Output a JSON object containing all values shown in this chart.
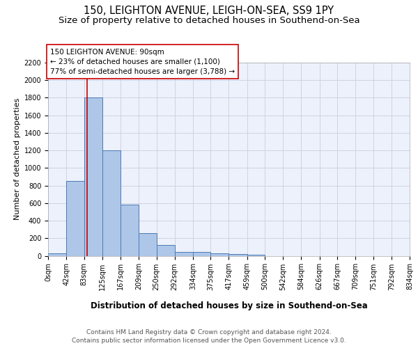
{
  "title1": "150, LEIGHTON AVENUE, LEIGH-ON-SEA, SS9 1PY",
  "title2": "Size of property relative to detached houses in Southend-on-Sea",
  "xlabel": "Distribution of detached houses by size in Southend-on-Sea",
  "ylabel": "Number of detached properties",
  "bin_labels": [
    "0sqm",
    "42sqm",
    "83sqm",
    "125sqm",
    "167sqm",
    "209sqm",
    "250sqm",
    "292sqm",
    "334sqm",
    "375sqm",
    "417sqm",
    "459sqm",
    "500sqm",
    "542sqm",
    "584sqm",
    "626sqm",
    "667sqm",
    "709sqm",
    "751sqm",
    "792sqm",
    "834sqm"
  ],
  "bin_edges": [
    0,
    42,
    83,
    125,
    167,
    209,
    250,
    292,
    334,
    375,
    417,
    459,
    500,
    542,
    584,
    626,
    667,
    709,
    751,
    792,
    834
  ],
  "bar_heights": [
    25,
    850,
    1800,
    1200,
    580,
    255,
    120,
    45,
    40,
    30,
    20,
    15,
    0,
    0,
    0,
    0,
    0,
    0,
    0,
    0
  ],
  "bar_color": "#aec6e8",
  "bar_edge_color": "#4a7ab5",
  "grid_color": "#c8cfe0",
  "background_color": "#edf1fb",
  "property_size": 90,
  "red_line_color": "#cc0000",
  "annotation_text": "150 LEIGHTON AVENUE: 90sqm\n← 23% of detached houses are smaller (1,100)\n77% of semi-detached houses are larger (3,788) →",
  "annotation_box_color": "white",
  "annotation_box_edge": "#cc0000",
  "ylim": [
    0,
    2200
  ],
  "yticks": [
    0,
    200,
    400,
    600,
    800,
    1000,
    1200,
    1400,
    1600,
    1800,
    2000,
    2200
  ],
  "footer1": "Contains HM Land Registry data © Crown copyright and database right 2024.",
  "footer2": "Contains public sector information licensed under the Open Government Licence v3.0.",
  "title1_fontsize": 10.5,
  "title2_fontsize": 9.5,
  "xlabel_fontsize": 8.5,
  "ylabel_fontsize": 8,
  "tick_fontsize": 7,
  "annotation_fontsize": 7.5,
  "footer_fontsize": 6.5
}
